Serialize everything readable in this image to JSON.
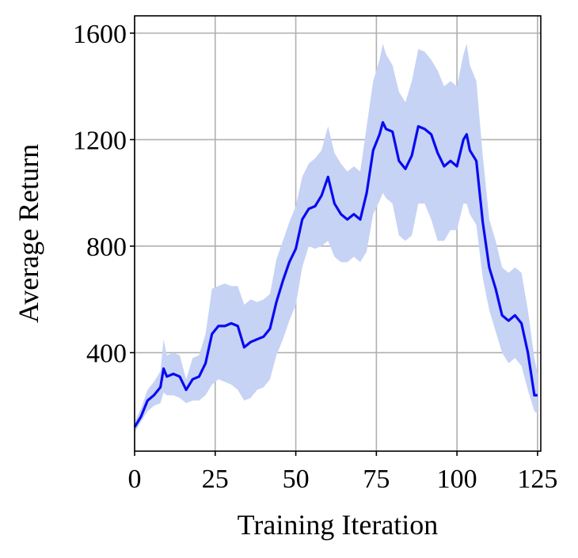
{
  "chart_data": {
    "type": "line",
    "title": "",
    "xlabel": "Training Iteration",
    "ylabel": "Average Return",
    "xlim": [
      0,
      126
    ],
    "ylim": [
      30,
      1665
    ],
    "xticks": [
      0,
      25,
      50,
      75,
      100,
      125
    ],
    "yticks": [
      400,
      800,
      1200,
      1600
    ],
    "grid": true,
    "colors": {
      "line": "#0a0af0",
      "band": "#c6d3f5"
    },
    "series": [
      {
        "x": [
          0,
          2,
          4,
          6,
          8,
          9,
          10,
          12,
          14,
          16,
          18,
          20,
          22,
          24,
          26,
          28,
          30,
          32,
          34,
          36,
          38,
          40,
          42,
          44,
          46,
          48,
          50,
          52,
          54,
          56,
          58,
          60,
          62,
          64,
          66,
          68,
          70,
          72,
          74,
          76,
          77,
          78,
          80,
          82,
          84,
          86,
          88,
          90,
          92,
          94,
          96,
          98,
          100,
          102,
          103,
          104,
          106,
          108,
          110,
          112,
          114,
          116,
          118,
          120,
          122,
          124,
          125
        ],
        "y": [
          120,
          160,
          220,
          240,
          270,
          340,
          310,
          320,
          310,
          260,
          300,
          310,
          360,
          470,
          500,
          500,
          510,
          500,
          420,
          440,
          450,
          460,
          490,
          590,
          670,
          740,
          790,
          900,
          940,
          950,
          990,
          1060,
          960,
          920,
          900,
          920,
          900,
          1000,
          1160,
          1220,
          1265,
          1240,
          1230,
          1120,
          1090,
          1140,
          1250,
          1240,
          1220,
          1150,
          1100,
          1120,
          1100,
          1200,
          1220,
          1160,
          1120,
          890,
          720,
          640,
          540,
          520,
          540,
          510,
          400,
          240,
          240
        ],
        "lower": [
          100,
          140,
          180,
          200,
          210,
          250,
          240,
          240,
          230,
          210,
          220,
          220,
          240,
          280,
          300,
          290,
          280,
          260,
          220,
          230,
          260,
          270,
          300,
          390,
          450,
          520,
          580,
          720,
          800,
          790,
          800,
          820,
          760,
          740,
          740,
          760,
          740,
          780,
          920,
          970,
          1000,
          980,
          960,
          840,
          820,
          840,
          960,
          960,
          900,
          820,
          820,
          860,
          860,
          960,
          960,
          920,
          880,
          680,
          560,
          480,
          400,
          360,
          380,
          350,
          260,
          180,
          170
        ],
        "upper": [
          140,
          190,
          260,
          290,
          330,
          450,
          390,
          400,
          390,
          300,
          380,
          390,
          470,
          640,
          650,
          660,
          650,
          650,
          580,
          600,
          590,
          600,
          620,
          750,
          820,
          890,
          950,
          1060,
          1110,
          1130,
          1160,
          1250,
          1150,
          1110,
          1080,
          1100,
          1080,
          1250,
          1420,
          1500,
          1560,
          1520,
          1480,
          1380,
          1340,
          1420,
          1540,
          1530,
          1500,
          1460,
          1400,
          1420,
          1400,
          1520,
          1560,
          1480,
          1420,
          1140,
          900,
          820,
          720,
          700,
          720,
          700,
          560,
          380,
          320
        ]
      }
    ]
  }
}
